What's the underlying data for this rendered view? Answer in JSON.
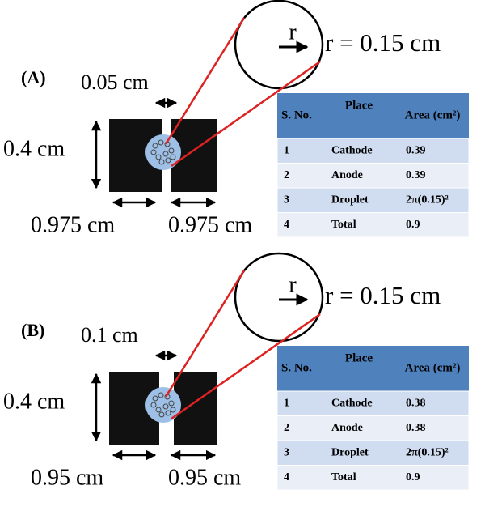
{
  "panels": [
    {
      "label": "(A)",
      "gap_label": "0.05 cm",
      "height_label": "0.4 cm",
      "left_label": "0.975 cm",
      "right_label": "0.975 cm",
      "radius_symbol": "r",
      "radius_label": "r = 0.15 cm",
      "table": {
        "header": [
          "S. No.",
          "Place",
          "Area (cm²)"
        ],
        "rows": [
          [
            "1",
            "Cathode",
            "0.39"
          ],
          [
            "2",
            "Anode",
            "0.39"
          ],
          [
            "3",
            "Droplet",
            "2π(0.15)²"
          ],
          [
            "4",
            "Total",
            "0.9"
          ]
        ]
      }
    },
    {
      "label": "(B)",
      "gap_label": "0.1 cm",
      "height_label": "0.4 cm",
      "left_label": "0.95 cm",
      "right_label": "0.95 cm",
      "radius_symbol": "r",
      "radius_label": "r = 0.15 cm",
      "table": {
        "header": [
          "S. No.",
          "Place",
          "Area (cm²)"
        ],
        "rows": [
          [
            "1",
            "Cathode",
            "0.38"
          ],
          [
            "2",
            "Anode",
            "0.38"
          ],
          [
            "3",
            "Droplet",
            "2π(0.15)²"
          ],
          [
            "4",
            "Total",
            "0.9"
          ]
        ]
      }
    }
  ]
}
